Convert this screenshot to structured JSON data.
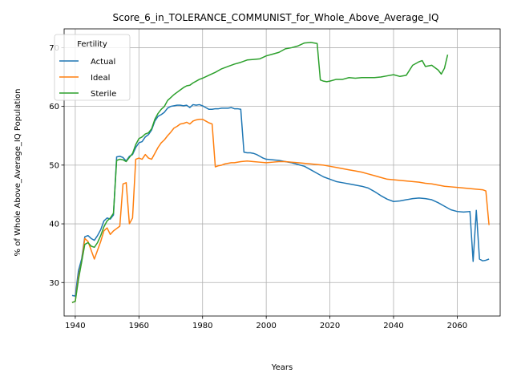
{
  "chart_data": {
    "type": "line",
    "title": "Score_6_in_TOLERANCE_COMMUNIST_for_Whole_Above_Average_IQ",
    "xlabel": "Years",
    "ylabel": "% of Whole Above_Average_IQ Population",
    "xlim": [
      1936.5,
      2073.5
    ],
    "ylim": [
      24.3,
      73.2
    ],
    "xticks": [
      1940,
      1960,
      1980,
      2000,
      2020,
      2040,
      2060
    ],
    "yticks": [
      30,
      40,
      50,
      60,
      70
    ],
    "grid": true,
    "legend": {
      "title": "Fertility",
      "placement": "top-left"
    },
    "series": [
      {
        "name": "Actual",
        "color": "#1f77b4",
        "x": [
          1939,
          1940,
          1941,
          1942,
          1943,
          1944,
          1945,
          1946,
          1947,
          1948,
          1949,
          1950,
          1951,
          1952,
          1953,
          1954,
          1955,
          1956,
          1957,
          1958,
          1959,
          1960,
          1961,
          1962,
          1963,
          1964,
          1965,
          1966,
          1967,
          1968,
          1969,
          1970,
          1971,
          1972,
          1973,
          1974,
          1975,
          1976,
          1977,
          1978,
          1979,
          1980,
          1981,
          1982,
          1983,
          1984,
          1985,
          1986,
          1987,
          1988,
          1989,
          1990,
          1991,
          1992,
          1993,
          1994,
          1995,
          1996,
          1997,
          1998,
          1999,
          2000,
          2002,
          2004,
          2006,
          2008,
          2010,
          2012,
          2014,
          2016,
          2018,
          2020,
          2022,
          2024,
          2026,
          2028,
          2030,
          2032,
          2034,
          2036,
          2038,
          2040,
          2042,
          2044,
          2046,
          2048,
          2050,
          2052,
          2054,
          2056,
          2058,
          2060,
          2062,
          2064,
          2065,
          2066,
          2067,
          2068,
          2069,
          2070
        ],
        "y": [
          27.8,
          27.7,
          32.0,
          34.0,
          37.8,
          38.0,
          37.5,
          37.2,
          38.0,
          39.0,
          40.5,
          41.0,
          40.8,
          41.5,
          51.4,
          51.5,
          51.3,
          50.7,
          51.5,
          51.8,
          53.0,
          53.8,
          54.0,
          54.8,
          55.2,
          56.0,
          57.5,
          58.3,
          58.6,
          59.0,
          59.7,
          60.0,
          60.1,
          60.2,
          60.2,
          60.1,
          60.2,
          59.8,
          60.3,
          60.2,
          60.3,
          60.1,
          59.8,
          59.5,
          59.5,
          59.6,
          59.6,
          59.7,
          59.7,
          59.7,
          59.8,
          59.6,
          59.6,
          59.5,
          52.2,
          52.1,
          52.1,
          52.0,
          51.8,
          51.5,
          51.2,
          51.0,
          50.9,
          50.8,
          50.6,
          50.4,
          50.1,
          49.8,
          49.2,
          48.6,
          48.0,
          47.6,
          47.2,
          47.0,
          46.8,
          46.6,
          46.4,
          46.1,
          45.5,
          44.8,
          44.2,
          43.8,
          43.9,
          44.1,
          44.3,
          44.4,
          44.3,
          44.1,
          43.6,
          43.0,
          42.4,
          42.1,
          42.0,
          42.1,
          33.6,
          42.3,
          34.0,
          33.7,
          33.8,
          34.0
        ]
      },
      {
        "name": "Ideal",
        "color": "#ff7f0e",
        "x": [
          1939,
          1940,
          1941,
          1942,
          1943,
          1944,
          1945,
          1946,
          1947,
          1948,
          1949,
          1950,
          1951,
          1952,
          1953,
          1954,
          1955,
          1956,
          1957,
          1958,
          1959,
          1960,
          1961,
          1962,
          1963,
          1964,
          1965,
          1966,
          1967,
          1968,
          1969,
          1970,
          1971,
          1972,
          1973,
          1974,
          1975,
          1976,
          1977,
          1978,
          1979,
          1980,
          1981,
          1982,
          1983,
          1984,
          1985,
          1986,
          1987,
          1988,
          1989,
          1990,
          1992,
          1994,
          1996,
          1998,
          2000,
          2002,
          2004,
          2006,
          2008,
          2010,
          2012,
          2014,
          2016,
          2018,
          2020,
          2022,
          2024,
          2026,
          2028,
          2030,
          2032,
          2034,
          2036,
          2038,
          2040,
          2042,
          2044,
          2046,
          2048,
          2050,
          2052,
          2054,
          2056,
          2058,
          2060,
          2062,
          2064,
          2066,
          2068,
          2069,
          2070
        ],
        "y": [
          26.6,
          26.8,
          31.0,
          33.5,
          37.5,
          37.0,
          35.5,
          34.0,
          35.5,
          37.0,
          38.8,
          39.3,
          38.2,
          38.8,
          39.2,
          39.6,
          46.8,
          47.0,
          40.0,
          41.0,
          51.0,
          51.2,
          51.0,
          51.8,
          51.2,
          51.0,
          52.0,
          53.0,
          53.8,
          54.3,
          55.0,
          55.6,
          56.3,
          56.6,
          57.0,
          57.1,
          57.3,
          57.0,
          57.5,
          57.7,
          57.8,
          57.8,
          57.5,
          57.2,
          57.0,
          49.7,
          49.9,
          50.0,
          50.2,
          50.3,
          50.4,
          50.4,
          50.6,
          50.7,
          50.6,
          50.5,
          50.4,
          50.5,
          50.6,
          50.6,
          50.5,
          50.4,
          50.3,
          50.2,
          50.1,
          50.0,
          49.8,
          49.6,
          49.4,
          49.2,
          49.0,
          48.8,
          48.5,
          48.2,
          47.9,
          47.6,
          47.5,
          47.4,
          47.3,
          47.2,
          47.1,
          46.9,
          46.8,
          46.6,
          46.4,
          46.3,
          46.2,
          46.1,
          46.0,
          45.9,
          45.8,
          45.6,
          39.8
        ]
      },
      {
        "name": "Sterile",
        "color": "#2ca02c",
        "x": [
          1939,
          1940,
          1941,
          1942,
          1943,
          1944,
          1945,
          1946,
          1947,
          1948,
          1949,
          1950,
          1951,
          1952,
          1953,
          1954,
          1955,
          1956,
          1957,
          1958,
          1959,
          1960,
          1961,
          1962,
          1963,
          1964,
          1965,
          1966,
          1967,
          1968,
          1969,
          1970,
          1971,
          1972,
          1973,
          1974,
          1975,
          1976,
          1977,
          1978,
          1979,
          1980,
          1982,
          1984,
          1986,
          1988,
          1990,
          1992,
          1994,
          1996,
          1998,
          2000,
          2002,
          2004,
          2006,
          2008,
          2010,
          2012,
          2014,
          2016,
          2017,
          2018,
          2019,
          2020,
          2022,
          2024,
          2026,
          2028,
          2030,
          2032,
          2034,
          2036,
          2038,
          2040,
          2042,
          2044,
          2046,
          2048,
          2049,
          2050,
          2052,
          2054,
          2055,
          2056,
          2057
        ],
        "y": [
          26.6,
          26.8,
          30.5,
          33.5,
          36.5,
          36.8,
          36.2,
          36.0,
          36.8,
          38.0,
          39.5,
          40.5,
          41.0,
          41.8,
          50.8,
          51.0,
          50.9,
          50.6,
          51.3,
          52.0,
          53.5,
          54.5,
          54.8,
          55.3,
          55.5,
          56.2,
          57.8,
          58.8,
          59.5,
          60.0,
          61.0,
          61.5,
          62.0,
          62.4,
          62.8,
          63.2,
          63.5,
          63.6,
          64.0,
          64.3,
          64.6,
          64.8,
          65.3,
          65.8,
          66.4,
          66.8,
          67.2,
          67.5,
          67.9,
          68.0,
          68.1,
          68.6,
          68.9,
          69.2,
          69.8,
          70.0,
          70.3,
          70.8,
          70.9,
          70.7,
          64.5,
          64.3,
          64.2,
          64.3,
          64.6,
          64.6,
          64.9,
          64.8,
          64.9,
          64.9,
          64.9,
          65.0,
          65.2,
          65.4,
          65.1,
          65.3,
          67.0,
          67.6,
          67.8,
          66.8,
          67.0,
          66.2,
          65.5,
          66.5,
          68.8
        ]
      }
    ]
  }
}
